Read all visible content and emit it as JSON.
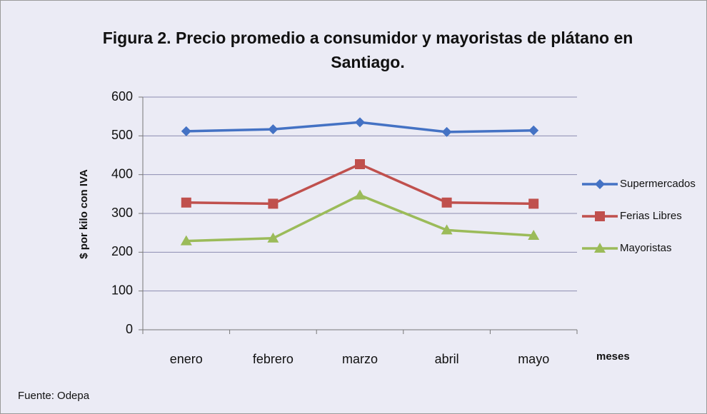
{
  "chart_data": {
    "type": "line",
    "title": "Figura 2. Precio promedio a consumidor y mayoristas de plátano en Santiago.",
    "y_label": "$ por kilo con IVA",
    "x_label": "meses",
    "source": "Fuente: Odepa",
    "categories": [
      "enero",
      "febrero",
      "marzo",
      "abril",
      "mayo"
    ],
    "series": [
      {
        "name": "Supermercados",
        "color": "#4472c4",
        "values": [
          512,
          517,
          535,
          510,
          514
        ]
      },
      {
        "name": "Ferias Libres",
        "color": "#c0504d",
        "values": [
          328,
          325,
          427,
          328,
          325
        ]
      },
      {
        "name": "Mayoristas",
        "color": "#9bbb59",
        "values": [
          229,
          236,
          347,
          257,
          243
        ]
      }
    ],
    "ylim": [
      0,
      600
    ],
    "yticks": [
      0,
      100,
      200,
      300,
      400,
      500,
      600
    ],
    "grid": true,
    "legend": "right"
  }
}
